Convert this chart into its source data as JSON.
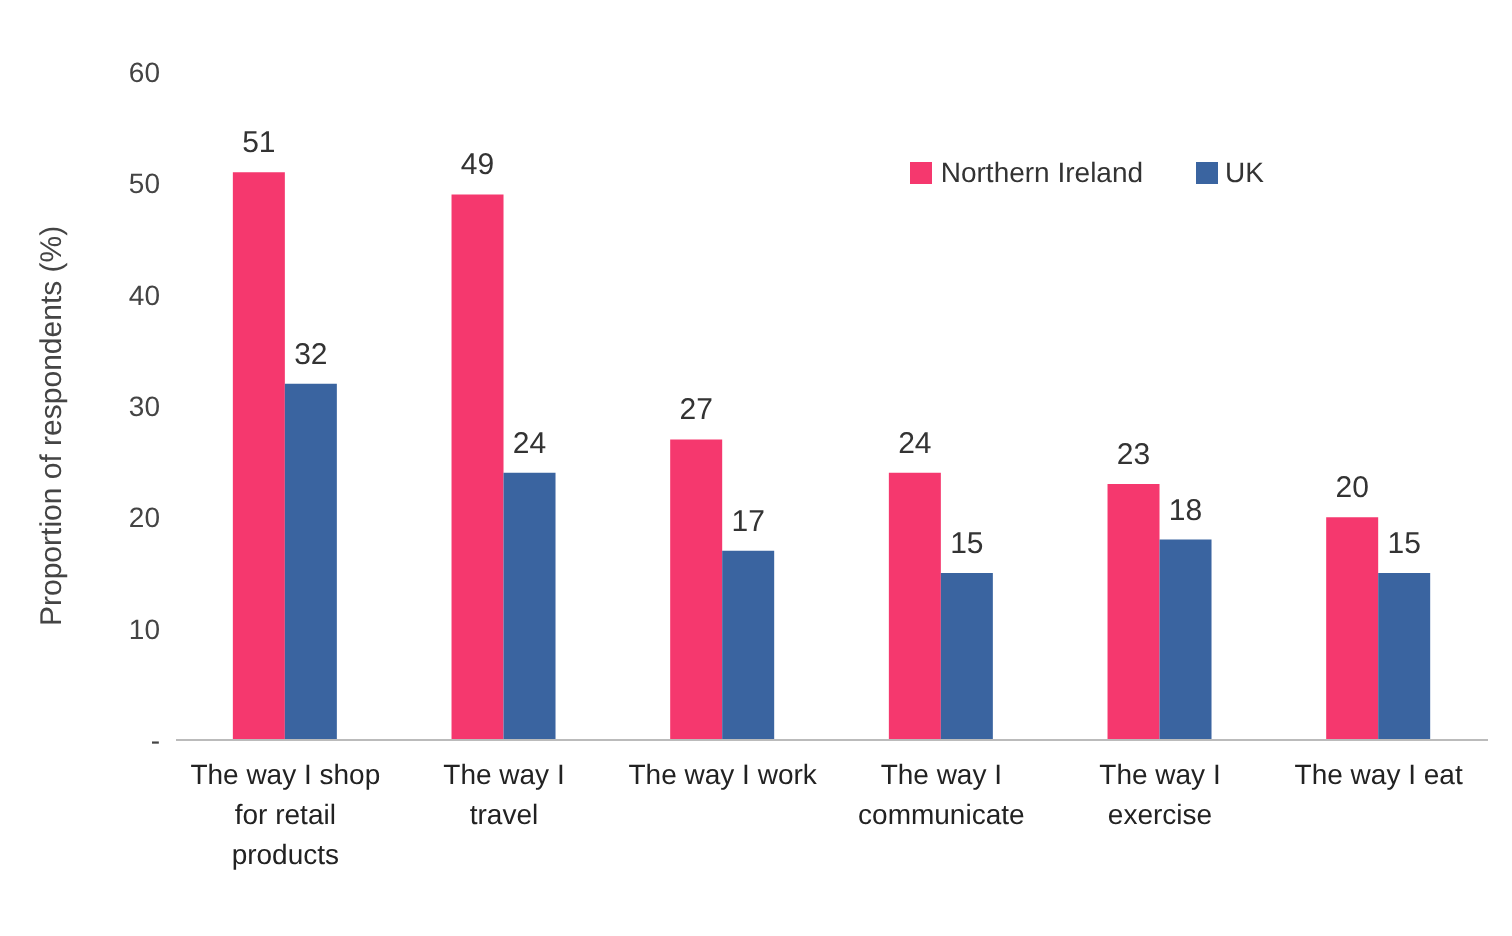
{
  "chart_data": {
    "type": "bar",
    "ylabel": "Proportion of respondents (%)",
    "categories": [
      "The way I shop for retail products",
      "The way I travel",
      "The way I work",
      "The way I communicate",
      "The way I exercise",
      "The way I eat"
    ],
    "series": [
      {
        "name": "Northern Ireland",
        "color": "#f5386e",
        "values": [
          51,
          49,
          27,
          24,
          23,
          20
        ]
      },
      {
        "name": "UK",
        "color": "#3a64a0",
        "values": [
          32,
          24,
          17,
          15,
          18,
          15
        ]
      }
    ],
    "ylim": [
      0,
      60
    ],
    "yticks": [
      {
        "value": 0,
        "label": "-"
      },
      10,
      20,
      30,
      40,
      50,
      60
    ],
    "grid": false,
    "legend": "top right",
    "data_labels": true
  }
}
